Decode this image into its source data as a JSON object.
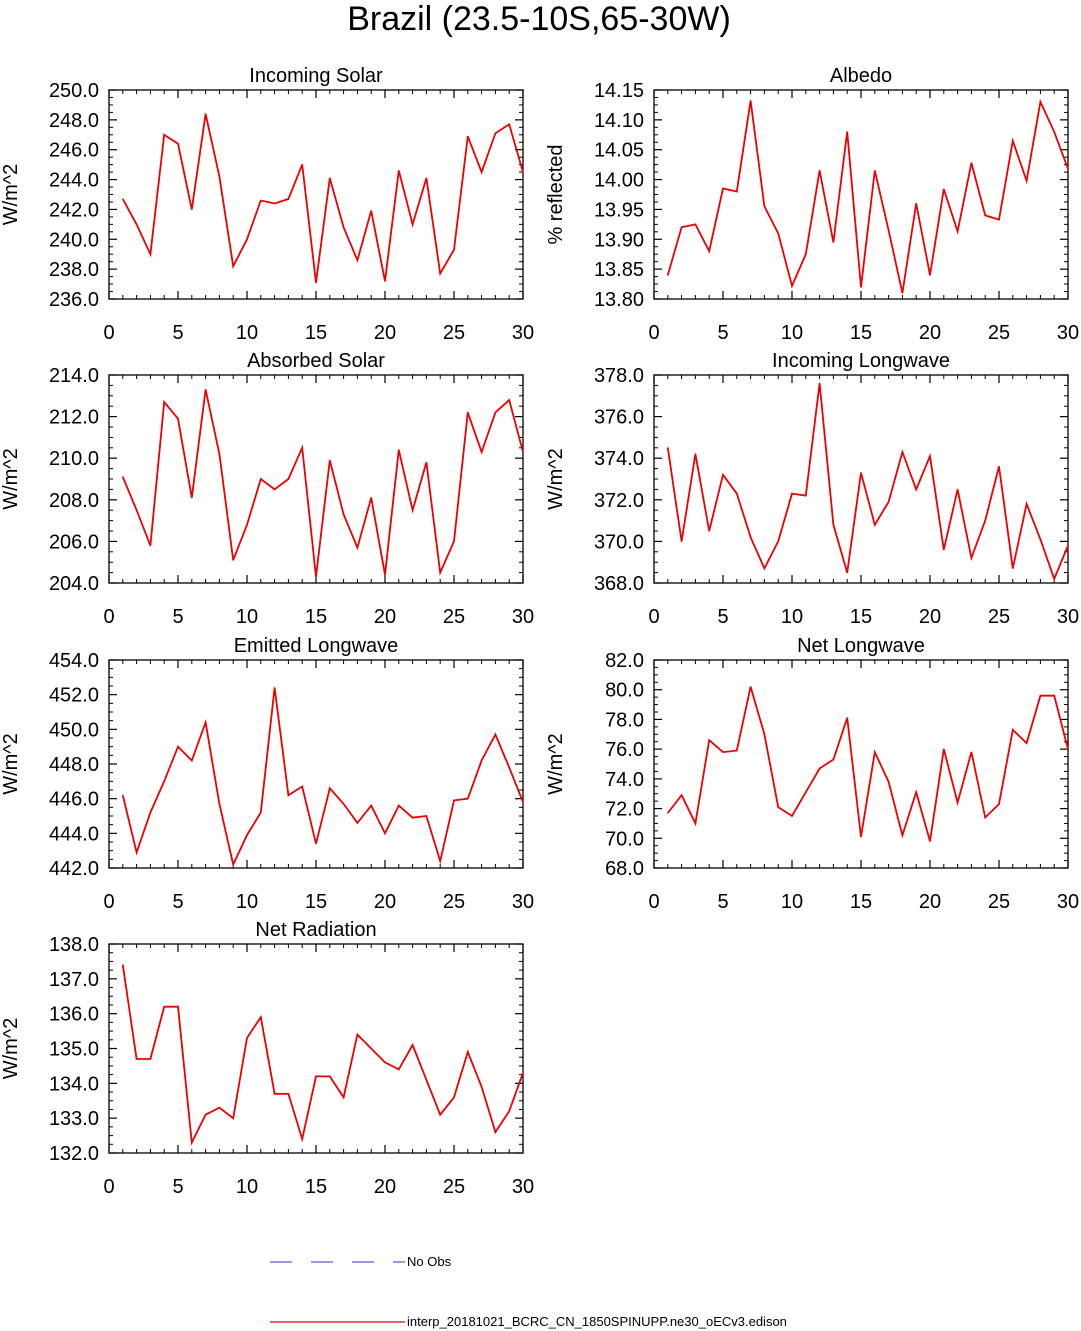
{
  "figure_title": "Brazil (23.5-10S,65-30W)",
  "colors": {
    "model_line": "#ee0000",
    "obs_line": "#3333cc",
    "axis": "#000000"
  },
  "legend": [
    {
      "label": "No Obs",
      "style": "dashed",
      "color": "#3333cc"
    },
    {
      "label": "interp_20181021_BCRC_CN_1850SPINUPP.ne30_oECv3.edison",
      "style": "solid",
      "color": "#ee0000"
    }
  ],
  "chart_data": [
    {
      "type": "line",
      "title": "Incoming Solar",
      "ylabel": "W/m^2",
      "xlabel": "",
      "xlim": [
        0,
        30
      ],
      "xticks": [
        "0",
        "5",
        "10",
        "15",
        "20",
        "25",
        "30"
      ],
      "ylim": [
        236,
        250
      ],
      "yticks": [
        "236.0",
        "238.0",
        "240.0",
        "242.0",
        "244.0",
        "246.0",
        "248.0",
        "250.0"
      ],
      "series": [
        {
          "name": "model",
          "x": [
            1,
            2,
            3,
            4,
            5,
            6,
            7,
            8,
            9,
            10,
            11,
            12,
            13,
            14,
            15,
            16,
            17,
            18,
            19,
            20,
            21,
            22,
            23,
            24,
            25,
            26,
            27,
            28,
            29,
            30
          ],
          "values": [
            242.7,
            241.0,
            239.0,
            247.0,
            246.4,
            242.0,
            248.4,
            244.2,
            238.2,
            240.0,
            242.6,
            242.4,
            242.7,
            245.0,
            237.1,
            244.1,
            240.8,
            238.6,
            241.9,
            237.2,
            244.6,
            241.0,
            244.1,
            237.7,
            239.3,
            246.9,
            244.5,
            247.1,
            247.7,
            244.5
          ]
        }
      ]
    },
    {
      "type": "line",
      "title": "Albedo",
      "ylabel": "% reflected",
      "xlabel": "",
      "xlim": [
        0,
        30
      ],
      "xticks": [
        "0",
        "5",
        "10",
        "15",
        "20",
        "25",
        "30"
      ],
      "ylim": [
        13.8,
        14.15
      ],
      "yticks": [
        "13.80",
        "13.85",
        "13.90",
        "13.95",
        "14.00",
        "14.05",
        "14.10",
        "14.15"
      ],
      "series": [
        {
          "name": "model",
          "x": [
            1,
            2,
            3,
            4,
            5,
            6,
            7,
            8,
            9,
            10,
            11,
            12,
            13,
            14,
            15,
            16,
            17,
            18,
            19,
            20,
            21,
            22,
            23,
            24,
            25,
            26,
            27,
            28,
            29,
            30
          ],
          "values": [
            13.84,
            13.92,
            13.925,
            13.88,
            13.985,
            13.98,
            14.132,
            13.955,
            13.91,
            13.822,
            13.875,
            14.015,
            13.895,
            14.08,
            13.82,
            14.015,
            13.915,
            13.81,
            13.96,
            13.84,
            13.984,
            13.913,
            14.028,
            13.94,
            13.933,
            14.065,
            13.998,
            14.13,
            14.08,
            14.018
          ]
        }
      ]
    },
    {
      "type": "line",
      "title": "Absorbed Solar",
      "ylabel": "W/m^2",
      "xlabel": "",
      "xlim": [
        0,
        30
      ],
      "xticks": [
        "0",
        "5",
        "10",
        "15",
        "20",
        "25",
        "30"
      ],
      "ylim": [
        204,
        214
      ],
      "yticks": [
        "204.0",
        "206.0",
        "208.0",
        "210.0",
        "212.0",
        "214.0"
      ],
      "series": [
        {
          "name": "model",
          "x": [
            1,
            2,
            3,
            4,
            5,
            6,
            7,
            8,
            9,
            10,
            11,
            12,
            13,
            14,
            15,
            16,
            17,
            18,
            19,
            20,
            21,
            22,
            23,
            24,
            25,
            26,
            27,
            28,
            29,
            30
          ],
          "values": [
            209.1,
            207.5,
            205.8,
            212.7,
            211.9,
            208.1,
            213.3,
            210.2,
            205.1,
            206.8,
            209.0,
            208.5,
            209.0,
            210.5,
            204.3,
            209.9,
            207.3,
            205.7,
            208.1,
            204.4,
            210.4,
            207.5,
            209.8,
            204.5,
            206.0,
            212.2,
            210.3,
            212.2,
            212.8,
            210.3
          ]
        }
      ]
    },
    {
      "type": "line",
      "title": "Incoming Longwave",
      "ylabel": "W/m^2",
      "xlabel": "",
      "xlim": [
        0,
        30
      ],
      "xticks": [
        "0",
        "5",
        "10",
        "15",
        "20",
        "25",
        "30"
      ],
      "ylim": [
        368,
        378
      ],
      "yticks": [
        "368.0",
        "370.0",
        "372.0",
        "374.0",
        "376.0",
        "378.0"
      ],
      "series": [
        {
          "name": "model",
          "x": [
            1,
            2,
            3,
            4,
            5,
            6,
            7,
            8,
            9,
            10,
            11,
            12,
            13,
            14,
            15,
            16,
            17,
            18,
            19,
            20,
            21,
            22,
            23,
            24,
            25,
            26,
            27,
            28,
            29,
            30
          ],
          "values": [
            374.5,
            370.0,
            374.2,
            370.5,
            373.2,
            372.3,
            370.2,
            368.7,
            370.0,
            372.3,
            372.2,
            377.6,
            370.8,
            368.5,
            373.3,
            370.8,
            371.9,
            374.3,
            372.5,
            374.1,
            369.6,
            372.5,
            369.2,
            371.0,
            373.6,
            368.7,
            371.8,
            370.1,
            368.2,
            369.8
          ]
        }
      ]
    },
    {
      "type": "line",
      "title": "Emitted Longwave",
      "ylabel": "W/m^2",
      "xlabel": "",
      "xlim": [
        0,
        30
      ],
      "xticks": [
        "0",
        "5",
        "10",
        "15",
        "20",
        "25",
        "30"
      ],
      "ylim": [
        442,
        454
      ],
      "yticks": [
        "442.0",
        "444.0",
        "446.0",
        "448.0",
        "450.0",
        "452.0",
        "454.0"
      ],
      "series": [
        {
          "name": "model",
          "x": [
            1,
            2,
            3,
            4,
            5,
            6,
            7,
            8,
            9,
            10,
            11,
            12,
            13,
            14,
            15,
            16,
            17,
            18,
            19,
            20,
            21,
            22,
            23,
            24,
            25,
            26,
            27,
            28,
            29,
            30
          ],
          "values": [
            446.2,
            442.9,
            445.2,
            447.0,
            449.0,
            448.2,
            450.4,
            445.7,
            442.2,
            443.9,
            445.2,
            452.4,
            446.2,
            446.7,
            443.4,
            446.6,
            445.7,
            444.6,
            445.6,
            444.0,
            445.6,
            444.9,
            445.0,
            442.4,
            445.9,
            446.0,
            448.2,
            449.7,
            447.8,
            445.8
          ]
        }
      ]
    },
    {
      "type": "line",
      "title": "Net Longwave",
      "ylabel": "W/m^2",
      "xlabel": "",
      "xlim": [
        0,
        30
      ],
      "xticks": [
        "0",
        "5",
        "10",
        "15",
        "20",
        "25",
        "30"
      ],
      "ylim": [
        68,
        82
      ],
      "yticks": [
        "68.0",
        "70.0",
        "72.0",
        "74.0",
        "76.0",
        "78.0",
        "80.0",
        "82.0"
      ],
      "series": [
        {
          "name": "model",
          "x": [
            1,
            2,
            3,
            4,
            5,
            6,
            7,
            8,
            9,
            10,
            11,
            12,
            13,
            14,
            15,
            16,
            17,
            18,
            19,
            20,
            21,
            22,
            23,
            24,
            25,
            26,
            27,
            28,
            29,
            30
          ],
          "values": [
            71.7,
            72.9,
            71.0,
            76.6,
            75.8,
            75.9,
            80.2,
            77.0,
            72.1,
            71.5,
            73.1,
            74.7,
            75.3,
            78.1,
            70.1,
            75.8,
            73.8,
            70.2,
            73.1,
            69.8,
            76.0,
            72.4,
            75.8,
            71.4,
            72.3,
            77.3,
            76.4,
            79.6,
            79.6,
            76.0
          ]
        }
      ]
    },
    {
      "type": "line",
      "title": "Net Radiation",
      "ylabel": "W/m^2",
      "xlabel": "",
      "xlim": [
        0,
        30
      ],
      "xticks": [
        "0",
        "5",
        "10",
        "15",
        "20",
        "25",
        "30"
      ],
      "ylim": [
        132,
        138
      ],
      "yticks": [
        "132.0",
        "133.0",
        "134.0",
        "135.0",
        "136.0",
        "137.0",
        "138.0"
      ],
      "series": [
        {
          "name": "model",
          "x": [
            1,
            2,
            3,
            4,
            5,
            6,
            7,
            8,
            9,
            10,
            11,
            12,
            13,
            14,
            15,
            16,
            17,
            18,
            19,
            20,
            21,
            22,
            23,
            24,
            25,
            26,
            27,
            28,
            29,
            30
          ],
          "values": [
            137.4,
            134.7,
            134.7,
            136.2,
            136.2,
            132.3,
            133.1,
            133.3,
            133.0,
            135.3,
            135.9,
            133.7,
            133.7,
            132.4,
            134.2,
            134.2,
            133.6,
            135.4,
            135.0,
            134.6,
            134.4,
            135.1,
            134.1,
            133.1,
            133.6,
            134.9,
            133.9,
            132.6,
            133.2,
            134.3
          ]
        }
      ]
    }
  ]
}
